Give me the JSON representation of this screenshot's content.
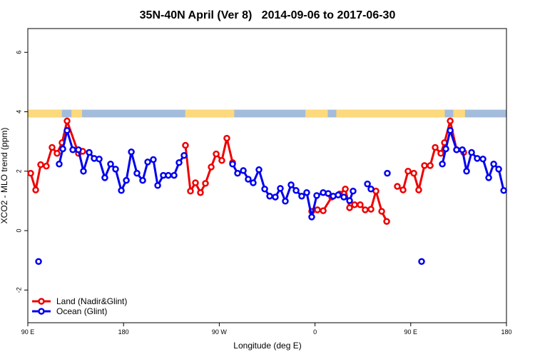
{
  "chart_data": {
    "type": "line",
    "title": "35N-40N April (Ver 8)   2014-09-06 to 2017-06-30",
    "x_label": "Longitude (deg E)",
    "y_label": "XCO2 - MLO trend (ppm)",
    "xlim": [
      90,
      540
    ],
    "xticks": [
      {
        "value": 90,
        "label": "90 E"
      },
      {
        "value": 180,
        "label": "180"
      },
      {
        "value": 270,
        "label": "90 W"
      },
      {
        "value": 360,
        "label": "0"
      },
      {
        "value": 450,
        "label": "90 E"
      },
      {
        "value": 540,
        "label": "180"
      }
    ],
    "ylim": [
      -3.1,
      6.8
    ],
    "yticks": [
      -2,
      0,
      2,
      4,
      6
    ],
    "legend": "bottomleft",
    "surface_band": {
      "ylim": [
        3.81,
        4.07
      ],
      "ocean_color": "#a3bcdc",
      "land_color": "#fcd97c",
      "land": [
        [
          90,
          122
        ],
        [
          131,
          141
        ],
        [
          238,
          284
        ],
        [
          351,
          372
        ],
        [
          380,
          482
        ],
        [
          490,
          501
        ]
      ]
    },
    "series": [
      {
        "name": "Land (Nadir&Glint)",
        "color": "#ee0000",
        "x": [
          92.7,
          97.4,
          102.1,
          107.4,
          112.8,
          117.5,
          122.2,
          126.9,
          137.6,
          141.6,
          null,
          238.2,
          242.9,
          247.6,
          252.3,
          257.0,
          262.4,
          267.1,
          272.4,
          277.1,
          282.5,
          null,
          356.9,
          362.3,
          367.7,
          375.7,
          383.1,
          388.5,
          392.5,
          397.2,
          402.5,
          407.2,
          412.6,
          417.3,
          422.7,
          427.4,
          null,
          437.4,
          442.8,
          447.5,
          452.9,
          457.5,
          462.9,
          468.3,
          473.0,
          478.3,
          481.7,
          487.1,
          493.1,
          499.8
        ],
        "values": [
          1.93,
          1.37,
          2.22,
          2.17,
          2.8,
          2.6,
          2.96,
          3.69,
          2.6,
          2.67,
          null,
          2.87,
          1.33,
          1.61,
          1.28,
          1.59,
          2.14,
          2.58,
          2.36,
          3.11,
          2.29,
          null,
          0.65,
          0.7,
          0.67,
          1.13,
          1.23,
          1.4,
          0.77,
          0.87,
          0.87,
          0.7,
          0.72,
          1.33,
          0.65,
          0.31,
          null,
          1.49,
          1.37,
          2.0,
          1.93,
          1.37,
          2.19,
          2.19,
          2.8,
          2.6,
          2.96,
          3.69,
          2.72,
          2.63
        ]
      },
      {
        "name": "Ocean (Glint)",
        "color": "#0000ee",
        "x": [
          100.1,
          null,
          119.5,
          122.9,
          126.9,
          132.3,
          137.6,
          142.3,
          147.7,
          152.4,
          157.1,
          162.4,
          167.8,
          172.5,
          177.9,
          182.6,
          187.3,
          192.6,
          198.0,
          202.7,
          208.0,
          212.1,
          217.4,
          222.1,
          227.5,
          232.2,
          236.9,
          null,
          282.5,
          287.2,
          292.6,
          297.2,
          301.9,
          307.3,
          312.7,
          317.4,
          322.7,
          327.4,
          332.1,
          337.5,
          342.2,
          347.5,
          352.2,
          356.9,
          361.6,
          367.7,
          372.4,
          377.1,
          381.8,
          387.1,
          392.5,
          395.8,
          null,
          409.3,
          412.6,
          null,
          428.0,
          null,
          460.2,
          null,
          479.7,
          483.0,
          487.1,
          493.1,
          498.5,
          502.5,
          507.2,
          512.5,
          517.9,
          523.3,
          528.0,
          532.7,
          537.4
        ],
        "values": [
          -1.04,
          null,
          2.24,
          2.75,
          3.37,
          2.72,
          2.72,
          2.0,
          2.63,
          2.43,
          2.41,
          1.78,
          2.24,
          2.07,
          1.35,
          1.69,
          2.65,
          1.93,
          1.69,
          2.31,
          2.39,
          1.52,
          1.86,
          1.86,
          1.86,
          2.29,
          2.53,
          null,
          2.24,
          1.93,
          2.02,
          1.73,
          1.61,
          2.05,
          1.4,
          1.16,
          1.13,
          1.42,
          0.99,
          1.54,
          1.35,
          1.16,
          1.28,
          0.46,
          1.18,
          1.28,
          1.25,
          1.16,
          1.2,
          1.13,
          1.01,
          1.33,
          null,
          1.57,
          1.4,
          null,
          1.93,
          null,
          -1.04,
          null,
          2.24,
          2.75,
          3.37,
          2.72,
          2.72,
          2.0,
          2.63,
          2.43,
          2.41,
          1.78,
          2.24,
          2.07,
          1.35
        ]
      }
    ]
  }
}
